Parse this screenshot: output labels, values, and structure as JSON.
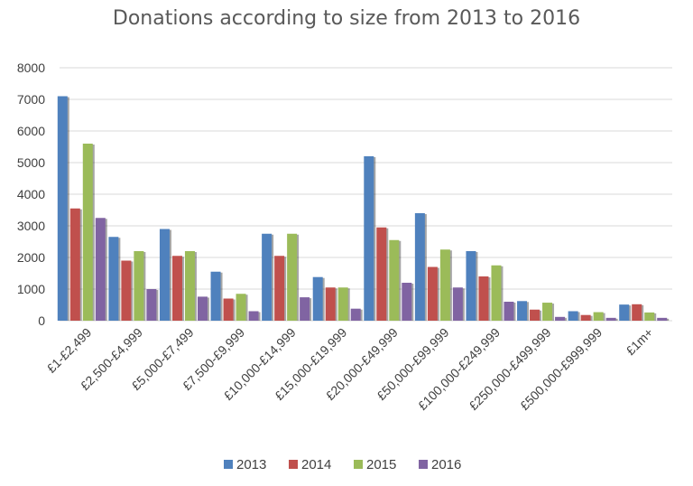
{
  "chart_data": {
    "type": "bar",
    "title": "Donations according to size from 2013 to 2016",
    "xlabel": "",
    "ylabel": "",
    "ylim": [
      0,
      8000
    ],
    "yticks": [
      0,
      1000,
      2000,
      3000,
      4000,
      5000,
      6000,
      7000,
      8000
    ],
    "grid": true,
    "legend_position": "bottom",
    "categories": [
      "£1-£2,499",
      "£2,500-£4,999",
      "£5,000-£7,499",
      "£7,500-£9,999",
      "£10,000-£14,999",
      "£15,000-£19,999",
      "£20,000-£49,999",
      "£50,000-£99,999",
      "£100,000-£249,999",
      "£250,000-£499,999",
      "£500,000-£999,999",
      "£1m+"
    ],
    "series": [
      {
        "name": "2013",
        "color": "#4F81BD",
        "values": [
          7100,
          2650,
          2900,
          1550,
          2750,
          1380,
          5200,
          3400,
          2200,
          620,
          300,
          510
        ]
      },
      {
        "name": "2014",
        "color": "#C0504D",
        "values": [
          3550,
          1900,
          2050,
          700,
          2050,
          1050,
          2950,
          1700,
          1400,
          350,
          180,
          520
        ]
      },
      {
        "name": "2015",
        "color": "#9BBB59",
        "values": [
          5600,
          2200,
          2200,
          850,
          2750,
          1050,
          2550,
          2250,
          1750,
          570,
          270,
          260
        ]
      },
      {
        "name": "2016",
        "color": "#8064A2",
        "values": [
          3250,
          1000,
          760,
          300,
          740,
          380,
          1200,
          1050,
          600,
          120,
          90,
          90
        ]
      }
    ]
  }
}
